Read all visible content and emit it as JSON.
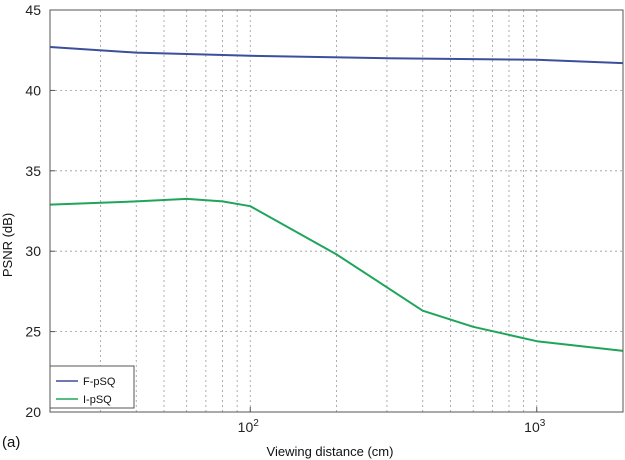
{
  "panel_label": "(a)",
  "chart_data": {
    "type": "line",
    "title": "",
    "xlabel": "Viewing distance (cm)",
    "ylabel": "PSNR (dB)",
    "x_scale": "log",
    "xlim": [
      20,
      2000
    ],
    "ylim": [
      20,
      45
    ],
    "x_ticks": [
      {
        "value": 100,
        "base": "10",
        "exp": "2"
      },
      {
        "value": 1000,
        "base": "10",
        "exp": "3"
      }
    ],
    "y_ticks": [
      20,
      25,
      30,
      35,
      40,
      45
    ],
    "grid": "dotted",
    "legend_position": "bottom-left",
    "series": [
      {
        "name": "F-pSQ",
        "color": "#3b4f9c",
        "x": [
          20,
          40,
          100,
          300,
          1000,
          2000
        ],
        "y": [
          42.7,
          42.35,
          42.15,
          42.0,
          41.9,
          41.7
        ]
      },
      {
        "name": "I-pSQ",
        "color": "#1fa55a",
        "x": [
          20,
          40,
          60,
          80,
          100,
          200,
          400,
          600,
          1000,
          2000
        ],
        "y": [
          32.9,
          33.1,
          33.25,
          33.1,
          32.8,
          29.8,
          26.3,
          25.3,
          24.4,
          23.8
        ]
      }
    ]
  }
}
